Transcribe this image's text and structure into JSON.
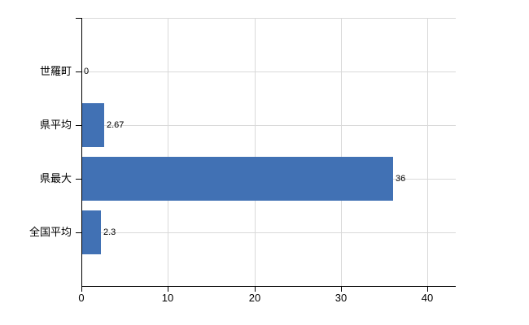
{
  "chart_data": {
    "type": "bar",
    "orientation": "horizontal",
    "title": "",
    "xlabel": "",
    "ylabel": "",
    "categories": [
      "世羅町",
      "県平均",
      "県最大",
      "全国平均"
    ],
    "values": [
      0,
      2.67,
      36,
      2.3
    ],
    "value_labels": [
      "0",
      "2.67",
      "36",
      "2.3"
    ],
    "x_ticks": [
      0,
      10,
      20,
      30,
      40
    ],
    "xlim": [
      0,
      43.3
    ],
    "grid": true,
    "legend": false,
    "colors": {
      "bar": "#4171b4",
      "grid": "#d9d9d9",
      "axis": "#000000",
      "text": "#000000"
    }
  }
}
